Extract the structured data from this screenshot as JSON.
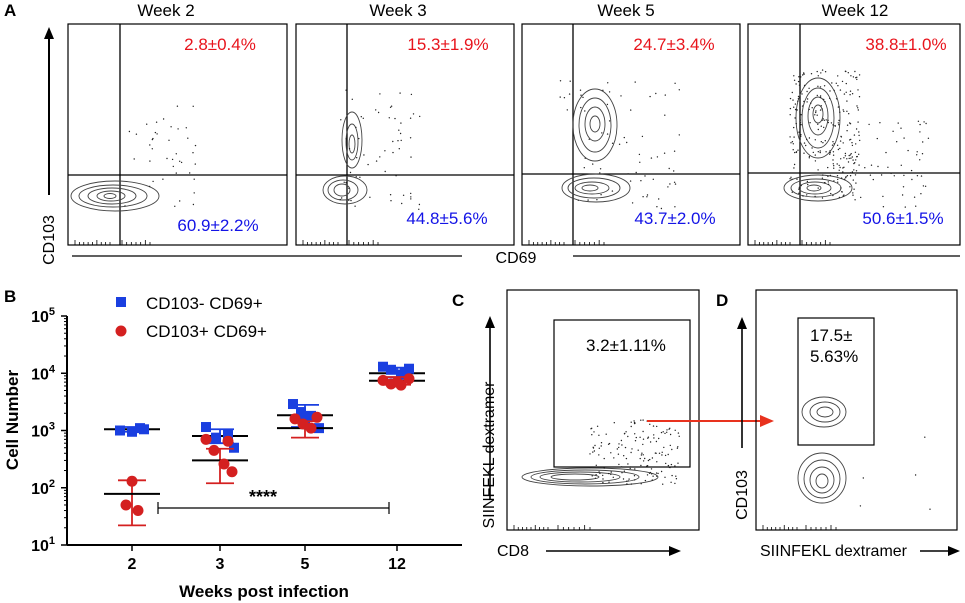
{
  "panel_labels": [
    "A",
    "B",
    "C",
    "D"
  ],
  "panelA": {
    "titles": [
      "Week 2",
      "Week 3",
      "Week 5",
      "Week 12"
    ],
    "upper_pct": [
      "2.8±0.4%",
      "15.3±1.9%",
      "24.7±3.4%",
      "38.8±1.0%"
    ],
    "lower_pct": [
      "60.9±2.2%",
      "44.8±5.6%",
      "43.7±2.0%",
      "50.6±1.5%"
    ],
    "y_axis_label": "CD103",
    "x_axis_label": "CD69",
    "upper_color": "#e8141c",
    "lower_color": "#1414e6"
  },
  "panelC": {
    "gate_label": "3.2±1.11%",
    "y_axis_label": "SIINFEKL dextramer",
    "x_axis_label": "CD8",
    "arrow_color": "#e8321e"
  },
  "panelD": {
    "gate_label_line1": "17.5±",
    "gate_label_line2": "5.63%",
    "y_axis_label": "CD103",
    "x_axis_label": "SIINFEKL dextramer"
  },
  "chart_data": {
    "type": "scatter",
    "xlabel": "Weeks post infection",
    "ylabel": "Cell Number",
    "y_scale": "log10",
    "ylim": [
      10,
      100000
    ],
    "y_ticks": [
      "10^1",
      "10^2",
      "10^3",
      "10^4",
      "10^5"
    ],
    "y_tick_base": "10",
    "y_tick_exp": [
      "1",
      "2",
      "3",
      "4",
      "5"
    ],
    "categories": [
      "2",
      "3",
      "5",
      "12"
    ],
    "series": [
      {
        "name": "CD103- CD69+",
        "marker": "square",
        "color": "#1a3fe0",
        "points": [
          [
            1000,
            950,
            1050,
            1100
          ],
          [
            1150,
            750,
            850,
            500
          ],
          [
            2900,
            2100,
            1800,
            1100,
            1600
          ],
          [
            13000,
            11500,
            9500,
            12000,
            10500
          ]
        ],
        "mean": [
          1050,
          800,
          1850,
          10000
        ],
        "sd_low": [
          950,
          600,
          1150,
          8500
        ],
        "sd_high": [
          1150,
          1050,
          2800,
          12500
        ]
      },
      {
        "name": "CD103+ CD69+",
        "marker": "circle",
        "color": "#d42020",
        "points": [
          [
            130,
            50,
            40
          ],
          [
            700,
            450,
            260,
            190,
            650
          ],
          [
            1600,
            1300,
            1100,
            1700
          ],
          [
            7500,
            6500,
            6200,
            8000,
            7000
          ]
        ],
        "mean": [
          78,
          300,
          1100,
          7400
        ],
        "sd_low": [
          22,
          120,
          750,
          6300
        ],
        "sd_high": [
          135,
          480,
          1450,
          8600
        ]
      }
    ],
    "annotation": "****",
    "annotation_span": [
      "2",
      "12"
    ]
  }
}
